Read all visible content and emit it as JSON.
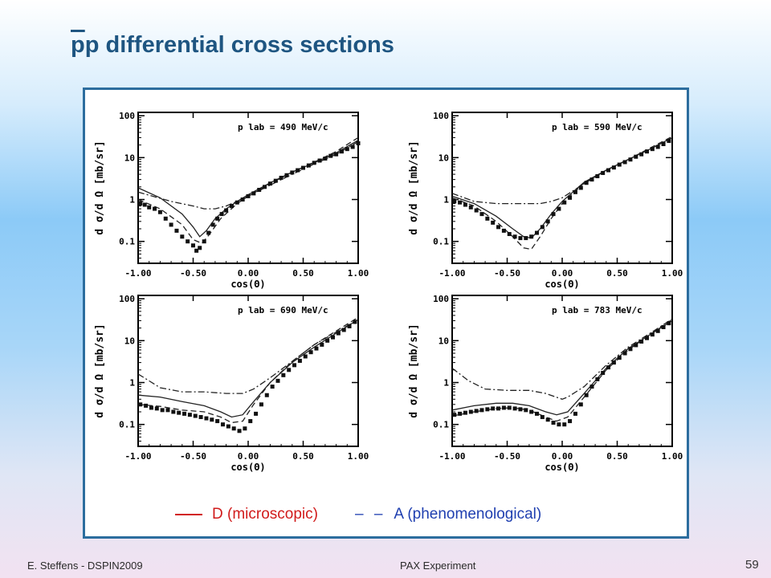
{
  "slide": {
    "title_overline_char": "p",
    "title_rest": "p differential cross sections",
    "footer_left": "E. Steffens  -  DSPIN2009",
    "footer_center": "PAX Experiment",
    "page_number": "59"
  },
  "legend": {
    "solid": {
      "dash": "",
      "label": "D (microscopic)",
      "color": "#d11b1b"
    },
    "dashed": {
      "dash": "– –",
      "label": "A (phenomenological)",
      "color": "#1f3fb0"
    }
  },
  "chart_data": [
    {
      "type": "line",
      "annotation": "p lab = 490 MeV/c",
      "xlabel": "cos(Θ)",
      "ylabel": "d σ/d Ω  [mb/sr]",
      "xlim": [
        -1,
        1
      ],
      "ylim": [
        0.03,
        120
      ],
      "yscale": "log",
      "x_ticks": [
        "-1.00",
        "-0.50",
        "0.00",
        "0.50",
        "1.00"
      ],
      "y_ticks": [
        "0.1",
        "1",
        "10",
        "100"
      ],
      "series": [
        {
          "name": "solid",
          "style": "solid",
          "x": [
            -1,
            -0.8,
            -0.6,
            -0.5,
            -0.44,
            -0.38,
            -0.3,
            -0.2,
            -0.1,
            0,
            0.2,
            0.4,
            0.6,
            0.8,
            1
          ],
          "y": [
            1.9,
            1.1,
            0.45,
            0.22,
            0.13,
            0.18,
            0.35,
            0.6,
            0.9,
            1.3,
            2.5,
            4.5,
            7.5,
            13,
            26
          ]
        },
        {
          "name": "dashed",
          "style": "dashed",
          "x": [
            -1,
            -0.8,
            -0.6,
            -0.5,
            -0.42,
            -0.35,
            -0.25,
            -0.1,
            0,
            0.2,
            0.4,
            0.6,
            0.8,
            1
          ],
          "y": [
            1.0,
            0.6,
            0.25,
            0.11,
            0.09,
            0.15,
            0.35,
            0.8,
            1.2,
            2.4,
            4.5,
            7.8,
            14,
            30
          ]
        },
        {
          "name": "dash-dot",
          "style": "dashdot",
          "x": [
            -1,
            -0.7,
            -0.5,
            -0.4,
            -0.3,
            -0.2,
            -0.1,
            0,
            0.2,
            0.4,
            0.6,
            0.8,
            1
          ],
          "y": [
            1.5,
            0.9,
            0.7,
            0.6,
            0.6,
            0.7,
            0.9,
            1.2,
            2.2,
            4,
            7,
            12,
            24
          ]
        },
        {
          "name": "data",
          "style": "points",
          "x": [
            -0.98,
            -0.94,
            -0.9,
            -0.85,
            -0.8,
            -0.75,
            -0.7,
            -0.65,
            -0.6,
            -0.55,
            -0.5,
            -0.47,
            -0.44,
            -0.4,
            -0.36,
            -0.32,
            -0.28,
            -0.24,
            -0.2,
            -0.15,
            -0.1,
            -0.05,
            0,
            0.05,
            0.1,
            0.15,
            0.2,
            0.25,
            0.3,
            0.35,
            0.4,
            0.45,
            0.5,
            0.55,
            0.6,
            0.65,
            0.7,
            0.75,
            0.8,
            0.85,
            0.9,
            0.95,
            1.0
          ],
          "y": [
            0.8,
            0.75,
            0.65,
            0.6,
            0.5,
            0.35,
            0.25,
            0.18,
            0.13,
            0.1,
            0.08,
            0.06,
            0.07,
            0.1,
            0.16,
            0.25,
            0.35,
            0.45,
            0.55,
            0.7,
            0.85,
            1.0,
            1.2,
            1.4,
            1.7,
            2.0,
            2.4,
            2.8,
            3.3,
            3.8,
            4.4,
            5.0,
            5.7,
            6.5,
            7.5,
            8.5,
            9.5,
            11,
            12,
            14,
            16,
            18,
            22
          ]
        }
      ]
    },
    {
      "type": "line",
      "annotation": "p lab = 590 MeV/c",
      "xlabel": "cos(Θ)",
      "ylabel": "d σ/d Ω  [mb/sr]",
      "xlim": [
        -1,
        1
      ],
      "ylim": [
        0.03,
        120
      ],
      "yscale": "log",
      "x_ticks": [
        "-1.00",
        "-0.50",
        "0.00",
        "0.50",
        "1.00"
      ],
      "y_ticks": [
        "0.1",
        "1",
        "10",
        "100"
      ],
      "series": [
        {
          "name": "solid",
          "style": "solid",
          "x": [
            -1,
            -0.8,
            -0.6,
            -0.45,
            -0.35,
            -0.28,
            -0.2,
            -0.1,
            0,
            0.2,
            0.4,
            0.6,
            0.8,
            1
          ],
          "y": [
            1.2,
            0.8,
            0.4,
            0.2,
            0.13,
            0.12,
            0.2,
            0.45,
            0.9,
            2.6,
            5,
            9,
            16,
            30
          ]
        },
        {
          "name": "dashed",
          "style": "dashed",
          "x": [
            -1,
            -0.8,
            -0.6,
            -0.45,
            -0.35,
            -0.28,
            -0.2,
            -0.1,
            0,
            0.2,
            0.4,
            0.6,
            0.8,
            1
          ],
          "y": [
            1.1,
            0.7,
            0.3,
            0.13,
            0.07,
            0.065,
            0.13,
            0.35,
            0.8,
            2.5,
            5,
            9,
            17,
            32
          ]
        },
        {
          "name": "dash-dot",
          "style": "dashdot",
          "x": [
            -1,
            -0.8,
            -0.6,
            -0.4,
            -0.2,
            -0.1,
            0,
            0.2,
            0.4,
            0.6,
            0.8,
            1
          ],
          "y": [
            1.4,
            0.9,
            0.8,
            0.8,
            0.8,
            0.9,
            1.1,
            2.4,
            5,
            9,
            16,
            30
          ]
        },
        {
          "name": "data",
          "style": "points",
          "x": [
            -0.98,
            -0.93,
            -0.88,
            -0.83,
            -0.78,
            -0.73,
            -0.68,
            -0.63,
            -0.58,
            -0.53,
            -0.48,
            -0.43,
            -0.38,
            -0.33,
            -0.28,
            -0.23,
            -0.18,
            -0.13,
            -0.08,
            -0.03,
            0.02,
            0.07,
            0.12,
            0.17,
            0.22,
            0.27,
            0.32,
            0.37,
            0.42,
            0.47,
            0.52,
            0.57,
            0.62,
            0.67,
            0.72,
            0.77,
            0.82,
            0.87,
            0.92,
            0.97
          ],
          "y": [
            0.9,
            0.85,
            0.75,
            0.65,
            0.55,
            0.45,
            0.35,
            0.28,
            0.22,
            0.18,
            0.15,
            0.13,
            0.12,
            0.12,
            0.13,
            0.16,
            0.22,
            0.3,
            0.45,
            0.6,
            0.85,
            1.1,
            1.5,
            1.9,
            2.5,
            3.0,
            3.6,
            4.3,
            5.0,
            5.8,
            6.8,
            7.8,
            9,
            10.5,
            12,
            14,
            16,
            18,
            21,
            25
          ]
        }
      ]
    },
    {
      "type": "line",
      "annotation": "p lab = 690 MeV/c",
      "xlabel": "cos(Θ)",
      "ylabel": "d σ/d Ω  [mb/sr]",
      "xlim": [
        -1,
        1
      ],
      "ylim": [
        0.03,
        120
      ],
      "yscale": "log",
      "x_ticks": [
        "-1.00",
        "-0.50",
        "0.00",
        "0.50",
        "1.00"
      ],
      "y_ticks": [
        "0.1",
        "1",
        "10",
        "100"
      ],
      "series": [
        {
          "name": "solid",
          "style": "solid",
          "x": [
            -1,
            -0.8,
            -0.6,
            -0.4,
            -0.25,
            -0.15,
            -0.05,
            0.05,
            0.2,
            0.4,
            0.6,
            0.8,
            1
          ],
          "y": [
            0.5,
            0.45,
            0.35,
            0.28,
            0.2,
            0.15,
            0.17,
            0.35,
            1.0,
            3.0,
            7,
            15,
            32
          ]
        },
        {
          "name": "dashed",
          "style": "dashed",
          "x": [
            -1,
            -0.8,
            -0.6,
            -0.4,
            -0.25,
            -0.15,
            -0.05,
            0.05,
            0.2,
            0.4,
            0.6,
            0.8,
            1
          ],
          "y": [
            0.3,
            0.27,
            0.22,
            0.2,
            0.15,
            0.11,
            0.12,
            0.3,
            1.0,
            3.2,
            8,
            17,
            36
          ]
        },
        {
          "name": "dash-dot",
          "style": "dashdot",
          "x": [
            -1,
            -0.8,
            -0.6,
            -0.4,
            -0.2,
            -0.05,
            0.05,
            0.2,
            0.4,
            0.6,
            0.8,
            1
          ],
          "y": [
            1.6,
            0.75,
            0.6,
            0.6,
            0.55,
            0.55,
            0.7,
            1.3,
            3.2,
            8,
            16,
            32
          ]
        },
        {
          "name": "data",
          "style": "points",
          "x": [
            -0.98,
            -0.93,
            -0.88,
            -0.83,
            -0.78,
            -0.73,
            -0.68,
            -0.63,
            -0.58,
            -0.53,
            -0.48,
            -0.43,
            -0.38,
            -0.33,
            -0.28,
            -0.23,
            -0.18,
            -0.13,
            -0.08,
            -0.03,
            0.02,
            0.07,
            0.12,
            0.17,
            0.22,
            0.27,
            0.32,
            0.37,
            0.42,
            0.47,
            0.52,
            0.57,
            0.62,
            0.67,
            0.72,
            0.77,
            0.82,
            0.87,
            0.92,
            0.97
          ],
          "y": [
            0.3,
            0.28,
            0.25,
            0.24,
            0.22,
            0.22,
            0.2,
            0.19,
            0.18,
            0.17,
            0.16,
            0.15,
            0.14,
            0.13,
            0.12,
            0.1,
            0.09,
            0.08,
            0.07,
            0.08,
            0.12,
            0.18,
            0.3,
            0.5,
            0.8,
            1.1,
            1.5,
            2.0,
            2.6,
            3.3,
            4.2,
            5.3,
            6.5,
            8,
            10,
            12,
            15,
            18,
            22,
            28
          ]
        }
      ]
    },
    {
      "type": "line",
      "annotation": "p lab = 783 MeV/c",
      "xlabel": "cos(Θ)",
      "ylabel": "d σ/d Ω  [mb/sr]",
      "xlim": [
        -1,
        1
      ],
      "ylim": [
        0.03,
        120
      ],
      "yscale": "log",
      "x_ticks": [
        "-1.00",
        "-0.50",
        "0.00",
        "0.50",
        "1.00"
      ],
      "y_ticks": [
        "0.1",
        "1",
        "10",
        "100"
      ],
      "series": [
        {
          "name": "solid",
          "style": "solid",
          "x": [
            -1,
            -0.8,
            -0.6,
            -0.45,
            -0.3,
            -0.15,
            -0.05,
            0.05,
            0.2,
            0.4,
            0.6,
            0.8,
            1
          ],
          "y": [
            0.22,
            0.28,
            0.32,
            0.32,
            0.28,
            0.2,
            0.17,
            0.2,
            0.55,
            2.2,
            6.5,
            14,
            30
          ]
        },
        {
          "name": "dashed",
          "style": "dashed",
          "x": [
            -1,
            -0.8,
            -0.6,
            -0.45,
            -0.3,
            -0.15,
            -0.05,
            0.05,
            0.2,
            0.4,
            0.6,
            0.8,
            1
          ],
          "y": [
            0.16,
            0.2,
            0.24,
            0.25,
            0.22,
            0.15,
            0.12,
            0.15,
            0.45,
            2.0,
            6,
            14,
            32
          ]
        },
        {
          "name": "dash-dot",
          "style": "dashdot",
          "x": [
            -1,
            -0.85,
            -0.7,
            -0.5,
            -0.3,
            -0.15,
            0,
            0.05,
            0.2,
            0.4,
            0.6,
            0.8,
            1
          ],
          "y": [
            2.2,
            1.1,
            0.7,
            0.65,
            0.65,
            0.55,
            0.4,
            0.45,
            0.8,
            2.6,
            7,
            15,
            33
          ]
        },
        {
          "name": "data",
          "style": "points",
          "x": [
            -0.98,
            -0.93,
            -0.88,
            -0.83,
            -0.78,
            -0.73,
            -0.68,
            -0.63,
            -0.58,
            -0.53,
            -0.48,
            -0.43,
            -0.38,
            -0.33,
            -0.28,
            -0.23,
            -0.18,
            -0.13,
            -0.08,
            -0.03,
            0.02,
            0.07,
            0.12,
            0.17,
            0.22,
            0.27,
            0.32,
            0.37,
            0.42,
            0.47,
            0.52,
            0.57,
            0.62,
            0.67,
            0.72,
            0.77,
            0.82,
            0.87,
            0.92,
            0.97
          ],
          "y": [
            0.17,
            0.18,
            0.19,
            0.2,
            0.21,
            0.22,
            0.23,
            0.24,
            0.24,
            0.25,
            0.25,
            0.24,
            0.23,
            0.22,
            0.2,
            0.18,
            0.15,
            0.13,
            0.11,
            0.1,
            0.1,
            0.12,
            0.18,
            0.3,
            0.5,
            0.8,
            1.2,
            1.7,
            2.3,
            3.0,
            3.9,
            5.0,
            6.3,
            7.8,
            9.5,
            11.5,
            14,
            17,
            21,
            26
          ]
        }
      ]
    }
  ]
}
